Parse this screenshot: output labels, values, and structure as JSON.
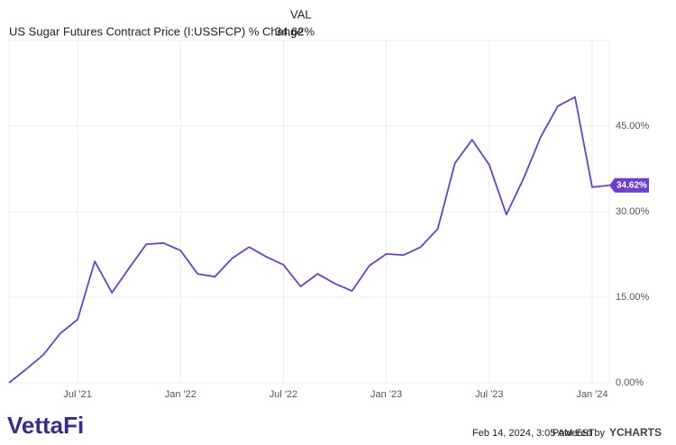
{
  "chart_data": {
    "type": "line",
    "legend_header": "VAL",
    "legend_value_label": "34.62%",
    "categories": [
      null,
      null,
      null,
      null,
      "Jul '21",
      null,
      null,
      null,
      null,
      null,
      "Jan '22",
      null,
      null,
      null,
      null,
      null,
      "Jul '22",
      null,
      null,
      null,
      null,
      null,
      "Jan '23",
      null,
      null,
      null,
      null,
      null,
      "Jul '23",
      null,
      null,
      null,
      null,
      null,
      "Jan '24",
      null
    ],
    "series": [
      {
        "name": "US Sugar Futures Contract Price (I:USSFCP) % Change",
        "color": "#6c3fd1",
        "values": [
          0,
          2.4,
          4.9,
          8.7,
          11.1,
          21.3,
          15.8,
          20.1,
          24.3,
          24.5,
          23.2,
          19.1,
          18.6,
          21.8,
          23.8,
          22.1,
          20.7,
          16.9,
          19.1,
          17.4,
          16.1,
          20.5,
          22.6,
          22.4,
          23.8,
          27.0,
          38.5,
          42.6,
          38.2,
          29.5,
          35.8,
          43.1,
          48.5,
          50.1,
          34.3,
          34.62
        ]
      }
    ],
    "ylim": [
      0,
      60
    ],
    "yticks": [
      {
        "value": 0,
        "label": "0.00%"
      },
      {
        "value": 15,
        "label": "15.00%"
      },
      {
        "value": 30,
        "label": "30.00%"
      },
      {
        "value": 45,
        "label": "45.00%"
      }
    ],
    "grid": true
  },
  "footer": {
    "logo": "VettaFi",
    "timestamp": "Feb 14, 2024, 3:05 AM EST",
    "powered_by": "Powered by",
    "brand": "YCHARTS"
  }
}
